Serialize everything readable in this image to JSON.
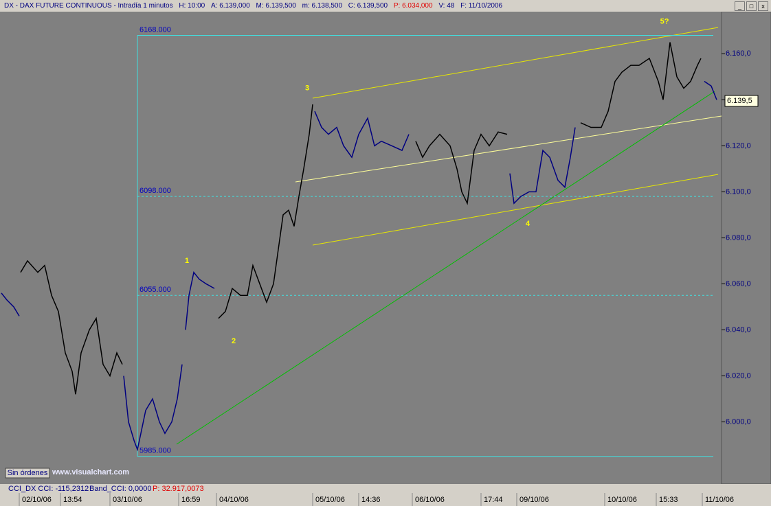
{
  "header": {
    "title": "DX - DAX FUTURE CONTINUOUS - Intradía 1 minutos",
    "fields": [
      "H: 10:00",
      "A: 6.139,000",
      "M: 6.139,500",
      "m: 6.138,500",
      "C: 6.139,500",
      "P: 6.034,000",
      "V: 48",
      "F: 11/10/2006"
    ]
  },
  "footer": {
    "indicator": "CCI_DX CCI: -115,2312",
    "band": "Band_CCI: 0,0000",
    "p": "P: 32.917,0073",
    "orders": "Sin órdenes",
    "site": "www.visualchart.com"
  },
  "chart_data": {
    "type": "line",
    "xlim": [
      0,
      1050
    ],
    "ylim": [
      5973,
      6178
    ],
    "xticks": [
      {
        "value": 28,
        "label": "02/10/06"
      },
      {
        "value": 88,
        "label": "13:54"
      },
      {
        "value": 160,
        "label": "03/10/06"
      },
      {
        "value": 260,
        "label": "16:59"
      },
      {
        "value": 315,
        "label": "04/10/06"
      },
      {
        "value": 455,
        "label": "05/10/06"
      },
      {
        "value": 522,
        "label": "14:36"
      },
      {
        "value": 600,
        "label": "06/10/06"
      },
      {
        "value": 700,
        "label": "17:44"
      },
      {
        "value": 752,
        "label": "09/10/06"
      },
      {
        "value": 880,
        "label": "10/10/06"
      },
      {
        "value": 955,
        "label": "15:33"
      },
      {
        "value": 1022,
        "label": "11/10/06"
      }
    ],
    "yticks": [
      {
        "value": 6000,
        "label": "6.000,0"
      },
      {
        "value": 6020,
        "label": "6.020,0"
      },
      {
        "value": 6040,
        "label": "6.040,0"
      },
      {
        "value": 6060,
        "label": "6.060,0"
      },
      {
        "value": 6080,
        "label": "6.080,0"
      },
      {
        "value": 6100,
        "label": "6.100,0"
      },
      {
        "value": 6120,
        "label": "6.120,0"
      },
      {
        "value": 6140,
        "label": "6.140,0"
      },
      {
        "value": 6160,
        "label": "6.160,0"
      }
    ],
    "levels": [
      {
        "value": 6168,
        "label": "6168.000"
      },
      {
        "value": 6098,
        "label": "6098.000"
      },
      {
        "value": 6055,
        "label": "6055.000"
      },
      {
        "value": 5985,
        "label": "5985.000"
      }
    ],
    "last_price": {
      "value": 6139.5,
      "label": "6.139,5"
    },
    "annotations": [
      {
        "text": "1",
        "x": 272,
        "y": 6070
      },
      {
        "text": "2",
        "x": 340,
        "y": 6035
      },
      {
        "text": "3",
        "x": 447,
        "y": 6145
      },
      {
        "text": "4",
        "x": 768,
        "y": 6086
      },
      {
        "text": "5?",
        "x": 967,
        "y": 6174
      }
    ],
    "series": [
      {
        "color": "#000080",
        "x": [
          2,
          10,
          20,
          28
        ],
        "values": [
          6056,
          6053,
          6050,
          6046
        ]
      },
      {
        "color": "#000000",
        "x": [
          30,
          40,
          55,
          65,
          75,
          85,
          95,
          105,
          110,
          118,
          130,
          140,
          150,
          160,
          170,
          178
        ],
        "values": [
          6065,
          6070,
          6065,
          6068,
          6055,
          6048,
          6030,
          6022,
          6012,
          6030,
          6040,
          6045,
          6025,
          6020,
          6030,
          6025
        ]
      },
      {
        "color": "#000080",
        "x": [
          180,
          187,
          195,
          200,
          205,
          212,
          222,
          232,
          240,
          250,
          258,
          265
        ],
        "values": [
          6020,
          6000,
          5992,
          5988,
          5995,
          6005,
          6010,
          6000,
          5995,
          6000,
          6010,
          6025
        ]
      },
      {
        "color": "#000080",
        "x": [
          270,
          275,
          282,
          290,
          300,
          312
        ],
        "values": [
          6040,
          6055,
          6065,
          6062,
          6060,
          6058
        ]
      },
      {
        "color": "#000000",
        "x": [
          318,
          328,
          338,
          350,
          360,
          368,
          378,
          388,
          398,
          405,
          412,
          420,
          428,
          435,
          442,
          450,
          455
        ],
        "values": [
          6045,
          6048,
          6058,
          6055,
          6055,
          6068,
          6060,
          6052,
          6060,
          6075,
          6090,
          6092,
          6085,
          6098,
          6110,
          6125,
          6138
        ]
      },
      {
        "color": "#000080",
        "x": [
          458,
          468,
          478,
          490,
          500,
          512,
          522,
          535,
          545,
          555,
          570,
          585,
          595
        ],
        "values": [
          6135,
          6128,
          6125,
          6128,
          6120,
          6115,
          6125,
          6132,
          6120,
          6122,
          6120,
          6118,
          6125
        ]
      },
      {
        "color": "#000000",
        "x": [
          605,
          615,
          625,
          640,
          655,
          665,
          672,
          680,
          690,
          700,
          712,
          725,
          738
        ],
        "values": [
          6122,
          6115,
          6120,
          6125,
          6120,
          6110,
          6100,
          6095,
          6118,
          6125,
          6120,
          6126,
          6125
        ]
      },
      {
        "color": "#000080",
        "x": [
          742,
          748,
          758,
          770,
          780,
          790,
          800,
          812,
          822,
          830,
          837
        ],
        "values": [
          6108,
          6095,
          6098,
          6100,
          6100,
          6118,
          6115,
          6105,
          6102,
          6115,
          6128
        ]
      },
      {
        "color": "#000000",
        "x": [
          845,
          860,
          875,
          885,
          895,
          905,
          918,
          930,
          945,
          958,
          965,
          975,
          985,
          995,
          1005,
          1015,
          1020
        ],
        "values": [
          6130,
          6128,
          6128,
          6135,
          6148,
          6152,
          6155,
          6155,
          6158,
          6148,
          6140,
          6165,
          6150,
          6145,
          6148,
          6155,
          6158
        ]
      },
      {
        "color": "#000080",
        "x": [
          1025,
          1035,
          1043
        ],
        "values": [
          6148,
          6146,
          6140
        ]
      }
    ]
  }
}
